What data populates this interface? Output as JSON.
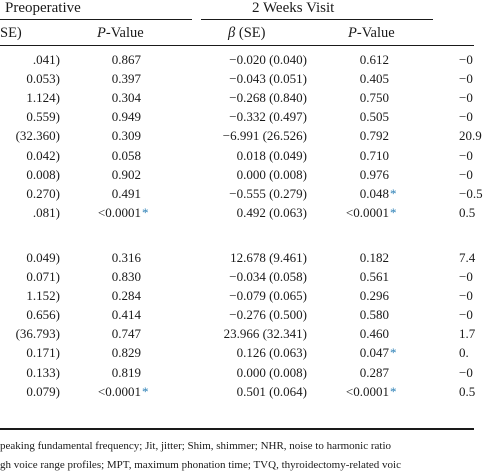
{
  "table": {
    "group_headers": [
      "Preoperative",
      "2 Weeks Visit"
    ],
    "column_headers": {
      "pre_se": "SE)",
      "pre_p": "P",
      "pre_p_suffix": "-Value",
      "w2_beta": "β",
      "w2_beta_suffix": " (SE)",
      "w2_p": "P",
      "w2_p_suffix": "-Value"
    },
    "rows": [
      {
        "pre_se": ".041)",
        "pre_p": "0.867",
        "w2_beta": "−0.020 (0.040)",
        "w2_p": "0.612",
        "extra": "−0"
      },
      {
        "pre_se": "0.053)",
        "pre_p": "0.397",
        "w2_beta": "−0.043 (0.051)",
        "w2_p": "0.405",
        "extra": "−0"
      },
      {
        "pre_se": "1.124)",
        "pre_p": "0.304",
        "w2_beta": "−0.268 (0.840)",
        "w2_p": "0.750",
        "extra": "−0"
      },
      {
        "pre_se": "0.559)",
        "pre_p": "0.949",
        "w2_beta": "−0.332 (0.497)",
        "w2_p": "0.505",
        "extra": "−0"
      },
      {
        "pre_se": "(32.360)",
        "pre_p": "0.309",
        "w2_beta": "−6.991 (26.526)",
        "w2_p": "0.792",
        "extra": "20.9"
      },
      {
        "pre_se": "0.042)",
        "pre_p": "0.058",
        "w2_beta": "0.018 (0.049)",
        "w2_p": "0.710",
        "extra": "−0"
      },
      {
        "pre_se": "0.008)",
        "pre_p": "0.902",
        "w2_beta": "0.000 (0.008)",
        "w2_p": "0.976",
        "extra": "−0"
      },
      {
        "pre_se": "0.270)",
        "pre_p": "0.491",
        "w2_beta": "−0.555 (0.279)",
        "w2_p": "0.048",
        "w2_p_ast": "*",
        "extra": "−0.5"
      },
      {
        "pre_se": ".081)",
        "pre_p": "<0.0001",
        "pre_p_ast": "*",
        "w2_beta": "0.492 (0.063)",
        "w2_p": "<0.0001",
        "w2_p_ast": "*",
        "extra": "0.5"
      },
      {
        "pre_se": "0.049)",
        "pre_p": "0.316",
        "w2_beta": "12.678 (9.461)",
        "w2_p": "0.182",
        "extra": "7.4"
      },
      {
        "pre_se": "0.071)",
        "pre_p": "0.830",
        "w2_beta": "−0.034 (0.058)",
        "w2_p": "0.561",
        "extra": "−0"
      },
      {
        "pre_se": "1.152)",
        "pre_p": "0.284",
        "w2_beta": "−0.079 (0.065)",
        "w2_p": "0.296",
        "extra": "−0"
      },
      {
        "pre_se": "0.656)",
        "pre_p": "0.414",
        "w2_beta": "−0.276 (0.500)",
        "w2_p": "0.580",
        "extra": "−0"
      },
      {
        "pre_se": "(36.793)",
        "pre_p": "0.747",
        "w2_beta": "23.966 (32.341)",
        "w2_p": "0.460",
        "extra": "1.7"
      },
      {
        "pre_se": "0.171)",
        "pre_p": "0.829",
        "w2_beta": "0.126 (0.063)",
        "w2_p": "0.047",
        "w2_p_ast": "*",
        "extra": "0."
      },
      {
        "pre_se": "0.133)",
        "pre_p": "0.819",
        "w2_beta": "0.000 (0.008)",
        "w2_p": "0.287",
        "extra": "−0"
      },
      {
        "pre_se": "0.079)",
        "pre_p": "<0.0001",
        "pre_p_ast": "*",
        "w2_beta": "0.501 (0.064)",
        "w2_p": "<0.0001",
        "w2_p_ast": "*",
        "extra": "0.5"
      }
    ]
  },
  "footnotes": [
    "peaking fundamental frequency; Jit, jitter; Shim, shimmer; NHR, noise to harmonic ratio",
    "gh voice range profiles; MPT, maximum phonation time; TVQ, thyroidectomy-related voic"
  ]
}
